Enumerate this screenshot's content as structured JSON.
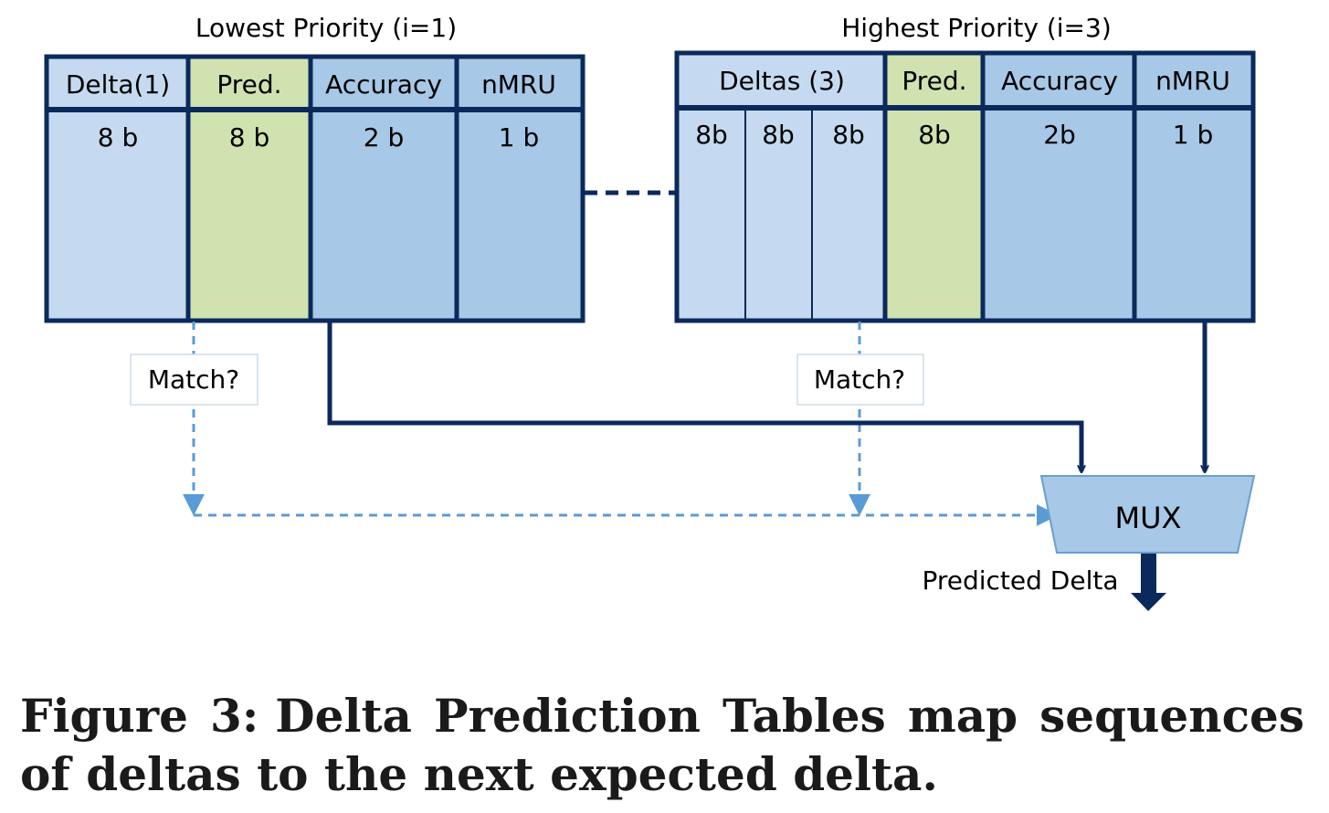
{
  "tables": {
    "low": {
      "title": "Lowest Priority (i=1)",
      "headers": {
        "delta": "Delta(1)",
        "pred": "Pred.",
        "accuracy": "Accuracy",
        "nmru": "nMRU"
      },
      "widths": {
        "delta": "8 b",
        "pred": "8 b",
        "accuracy": "2 b",
        "nmru": "1 b"
      }
    },
    "high": {
      "title": "Highest Priority (i=3)",
      "headers": {
        "deltas": "Deltas (3)",
        "pred": "Pred.",
        "accuracy": "Accuracy",
        "nmru": "nMRU"
      },
      "widths": {
        "d1": "8b",
        "d2": "8b",
        "d3": "8b",
        "pred": "8b",
        "accuracy": "2b",
        "nmru": "1 b"
      }
    }
  },
  "labels": {
    "match_low": "Match?",
    "match_high": "Match?",
    "mux": "MUX",
    "output": "Predicted Delta"
  },
  "caption": {
    "number": "Figure 3:",
    "text": "Delta Prediction Tables map sequences of deltas to the next expected delta."
  },
  "colors": {
    "light_blue": "#c5daf0",
    "mid_blue": "#a7c8e6",
    "green": "#cfe2b0",
    "border": "#0b2a5b",
    "dashed_blue": "#5b9bd5"
  }
}
